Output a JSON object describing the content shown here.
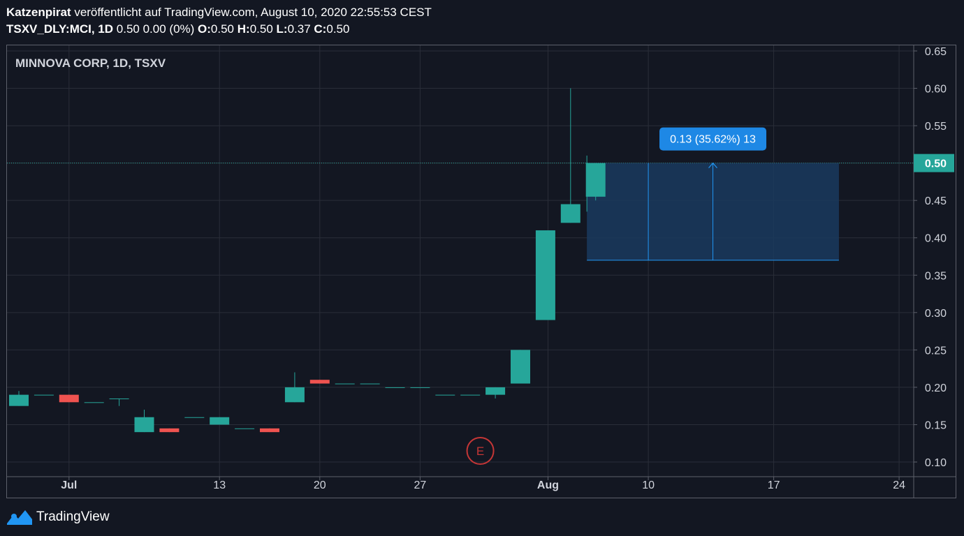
{
  "header": {
    "author": "Katzenpirat",
    "published": "veröffentlicht auf TradingView.com, August 10, 2020 22:55:53 CEST",
    "symbol": "TSXV_DLY:MCI, 1D",
    "change": "0.50 0.00 (0%)",
    "o_label": "O:",
    "o_value": "0.50",
    "h_label": "H:",
    "h_value": "0.50",
    "l_label": "L:",
    "l_value": "0.37",
    "c_label": "C:",
    "c_value": "0.50"
  },
  "footer": {
    "brand": "TradingView",
    "logo_icon": "tradingview-logo-icon"
  },
  "colors": {
    "background": "#131722",
    "grid": "#2a2e39",
    "up": "#26a69a",
    "down": "#ef5350",
    "measure_fill": "#1a3a5e",
    "measure_line": "#2196f3",
    "label_bg": "#1e88e5",
    "price_badge": "#26a69a",
    "event": "#c53636"
  },
  "chart_data": {
    "type": "candlestick",
    "title": "MINNOVA CORP, 1D, TSXV",
    "ylim": [
      0.1,
      0.65
    ],
    "y_ticks": [
      "0.10",
      "0.15",
      "0.20",
      "0.25",
      "0.30",
      "0.35",
      "0.40",
      "0.45",
      "0.50",
      "0.55",
      "0.60",
      "0.65"
    ],
    "x_ticks": [
      {
        "label": "Jul",
        "bold": true,
        "day": 2
      },
      {
        "label": "13",
        "bold": false,
        "day": 8
      },
      {
        "label": "20",
        "bold": false,
        "day": 12
      },
      {
        "label": "27",
        "bold": false,
        "day": 16
      },
      {
        "label": "Aug",
        "bold": true,
        "day": 21.1
      },
      {
        "label": "10",
        "bold": false,
        "day": 25.1
      },
      {
        "label": "17",
        "bold": false,
        "day": 30.1
      },
      {
        "label": "24",
        "bold": false,
        "day": 35.1
      }
    ],
    "candles": [
      {
        "day": 0,
        "o": 0.175,
        "h": 0.195,
        "l": 0.175,
        "c": 0.19
      },
      {
        "day": 1,
        "o": 0.19,
        "h": 0.19,
        "l": 0.19,
        "c": 0.19
      },
      {
        "day": 2,
        "o": 0.19,
        "h": 0.19,
        "l": 0.18,
        "c": 0.18
      },
      {
        "day": 3,
        "o": 0.18,
        "h": 0.18,
        "l": 0.18,
        "c": 0.18
      },
      {
        "day": 4,
        "o": 0.185,
        "h": 0.185,
        "l": 0.175,
        "c": 0.185
      },
      {
        "day": 5,
        "o": 0.14,
        "h": 0.17,
        "l": 0.14,
        "c": 0.16
      },
      {
        "day": 6,
        "o": 0.145,
        "h": 0.145,
        "l": 0.14,
        "c": 0.14
      },
      {
        "day": 7,
        "o": 0.16,
        "h": 0.16,
        "l": 0.16,
        "c": 0.16
      },
      {
        "day": 8,
        "o": 0.15,
        "h": 0.16,
        "l": 0.15,
        "c": 0.16
      },
      {
        "day": 9,
        "o": 0.145,
        "h": 0.145,
        "l": 0.145,
        "c": 0.145
      },
      {
        "day": 10,
        "o": 0.145,
        "h": 0.145,
        "l": 0.14,
        "c": 0.14
      },
      {
        "day": 11,
        "o": 0.18,
        "h": 0.22,
        "l": 0.18,
        "c": 0.2
      },
      {
        "day": 12,
        "o": 0.21,
        "h": 0.21,
        "l": 0.205,
        "c": 0.205
      },
      {
        "day": 13,
        "o": 0.205,
        "h": 0.205,
        "l": 0.205,
        "c": 0.205
      },
      {
        "day": 14,
        "o": 0.205,
        "h": 0.205,
        "l": 0.205,
        "c": 0.205
      },
      {
        "day": 15,
        "o": 0.2,
        "h": 0.2,
        "l": 0.2,
        "c": 0.2
      },
      {
        "day": 16,
        "o": 0.2,
        "h": 0.2,
        "l": 0.2,
        "c": 0.2
      },
      {
        "day": 17,
        "o": 0.19,
        "h": 0.19,
        "l": 0.19,
        "c": 0.19
      },
      {
        "day": 18,
        "o": 0.19,
        "h": 0.19,
        "l": 0.19,
        "c": 0.19
      },
      {
        "day": 19,
        "o": 0.19,
        "h": 0.2,
        "l": 0.185,
        "c": 0.2
      },
      {
        "day": 20,
        "o": 0.205,
        "h": 0.25,
        "l": 0.205,
        "c": 0.25
      },
      {
        "day": 21,
        "o": 0.29,
        "h": 0.41,
        "l": 0.29,
        "c": 0.41
      },
      {
        "day": 22,
        "o": 0.42,
        "h": 0.6,
        "l": 0.42,
        "c": 0.445
      },
      {
        "day": 23,
        "o": 0.455,
        "h": 0.5,
        "l": 0.45,
        "c": 0.5
      }
    ],
    "pre_wick": {
      "day": 22.65,
      "h": 0.51,
      "l": 0.435
    },
    "current_price": {
      "value": 0.5,
      "label": "0.50"
    },
    "measure": {
      "from_day": 22.65,
      "to_day": 32.7,
      "low": 0.37,
      "high": 0.5,
      "label": "0.13 (35.62%) 13"
    },
    "event_marker": {
      "label": "E",
      "day": 18.4
    }
  }
}
